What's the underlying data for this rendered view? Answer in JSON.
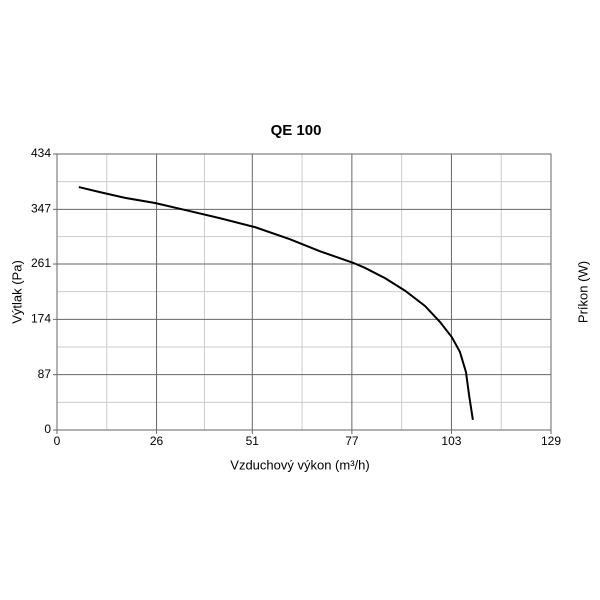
{
  "chart_data": {
    "type": "line",
    "title": "QE 100",
    "x_label": "Vzduchový výkon (m³/h)",
    "y_label": "Výtlak (Pa)",
    "y2_label": "Príkon (W)",
    "xlim": [
      0,
      129
    ],
    "xticks": [
      0,
      26,
      51,
      77,
      103,
      129
    ],
    "ylim": [
      0,
      434
    ],
    "yticks": [
      0,
      87,
      174,
      261,
      347,
      434
    ],
    "grid": true,
    "series": [
      {
        "color": "#000000",
        "x": [
          5.7,
          11.2,
          17.8,
          25.6,
          33.4,
          42.6,
          51.7,
          60.8,
          68.7,
          77.3,
          80.4,
          85.6,
          90.9,
          96.1,
          100.0,
          103.1,
          105.2,
          106.8,
          107.6,
          108.6
        ],
        "values": [
          382,
          374,
          365,
          357,
          346,
          333,
          319,
          300,
          281,
          263,
          255,
          239,
          219,
          195,
          170,
          146,
          123,
          91,
          55,
          16
        ]
      }
    ]
  }
}
